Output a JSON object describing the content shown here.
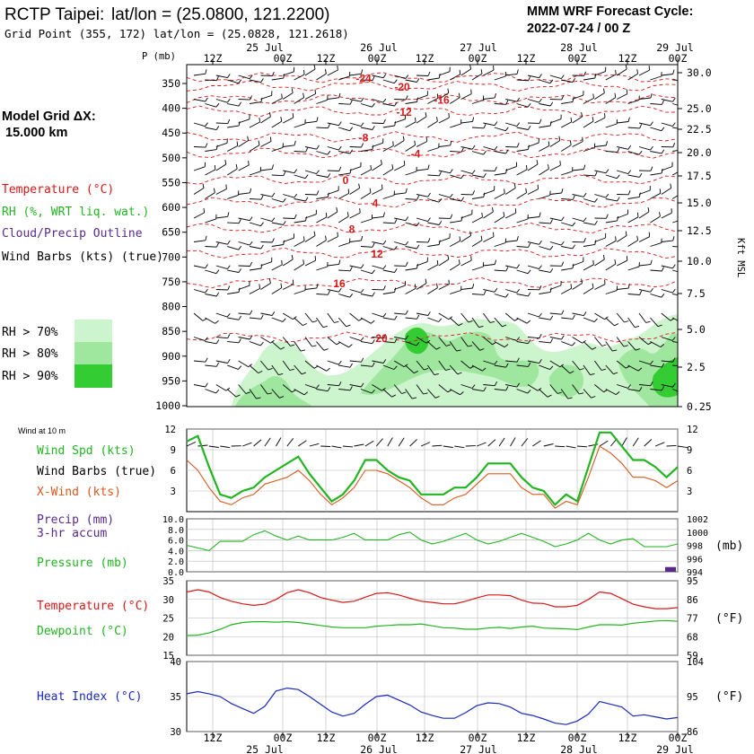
{
  "colors": {
    "temperature": "#d81818",
    "rh_green": "#22b522",
    "cloud_purple": "#5a2a8a",
    "xwind": "#d8581e",
    "heat_index": "#1a2ab8",
    "rh70": "#cdf5cd",
    "rh80": "#9fe69f",
    "rh90": "#33cc33"
  },
  "header": {
    "station": "RCTP Taipei:",
    "latlon_label": "lat/lon = (25.0800, 121.2200)",
    "grid_point": "Grid Point (355, 172) lat/lon = (25.0828, 121.2618)",
    "model_line1": "MMM WRF Forecast Cycle:",
    "model_line2": "2022-07-24 / 00  Z",
    "grid_dx_line1": "Model Grid ΔX:",
    "grid_dx_line2": "15.000 km"
  },
  "time_axis": {
    "ticks": [
      "12Z",
      "00Z",
      "12Z",
      "00Z",
      "12Z",
      "00Z",
      "12Z",
      "00Z",
      "12Z",
      "00Z"
    ],
    "dates": [
      "25 Jul",
      "26 Jul",
      "27 Jul",
      "28 Jul",
      "29 Jul"
    ]
  },
  "legend": {
    "temperature": "Temperature (°C)",
    "rh": "RH (%, WRT liq. wat.)",
    "cloud": "Cloud/Precip Outline",
    "barbs": "Wind Barbs (kts) (true)",
    "rh70": "RH > 70%",
    "rh80": "RH > 80%",
    "rh90": "RH > 90%"
  },
  "labels": {
    "wind10m": "Wind at 10 m",
    "wind_spd": "Wind Spd (kts)",
    "wind_barbs": "Wind Barbs (true)",
    "xwind": "X-Wind (kts)",
    "precip1": "Precip (mm)",
    "precip2": "3-hr accum",
    "pressure": "Pressure (mb)",
    "mb_unit": "(mb)",
    "temp": "Temperature (°C)",
    "dewpoint": "Dewpoint (°C)",
    "degF": "(°F)",
    "heat_index": "Heat Index (°C)",
    "p_axis": "P (mb)",
    "kft": "Kft MSL"
  },
  "chart_data": [
    {
      "type": "time-height cross section",
      "p_levels": [
        350,
        400,
        450,
        500,
        550,
        600,
        650,
        700,
        750,
        800,
        850,
        900,
        950,
        1000
      ],
      "kft_labels": [
        "30.0",
        "25.0",
        "22.5",
        "20.0",
        "17.5",
        "15.0",
        "12.5",
        "10.0",
        "7.5",
        "5.0",
        "2.5",
        "0.25"
      ],
      "temperature_contours": [
        {
          "label": "-24",
          "p": 338
        },
        {
          "label": "-20",
          "p": 355
        },
        {
          "label": "-16",
          "p": 382
        },
        {
          "label": "-12",
          "p": 406
        },
        {
          "label": "-8",
          "p": 458
        },
        {
          "label": "-4",
          "p": 490
        },
        {
          "label": "0",
          "p": 544
        },
        {
          "label": "4",
          "p": 590
        },
        {
          "label": "8",
          "p": 642
        },
        {
          "label": "12",
          "p": 692
        },
        {
          "label": "16",
          "p": 752
        },
        {
          "label": "20",
          "p": 862
        }
      ]
    },
    {
      "type": "line",
      "title": "Wind at 10 m",
      "y_ticks": [
        12,
        9,
        6,
        3
      ],
      "ylim": [
        0,
        12
      ],
      "series": [
        {
          "name": "Wind Spd (kts)",
          "values": [
            10.2,
            11.0,
            6.5,
            2.5,
            2.0,
            3.0,
            3.5,
            5.0,
            6.0,
            7.0,
            8.0,
            5.5,
            3.5,
            1.5,
            2.5,
            4.5,
            7.5,
            7.5,
            6.0,
            5.0,
            4.5,
            2.5,
            2.5,
            2.5,
            3.5,
            3.5,
            5.0,
            7.0,
            7.0,
            7.0,
            5.0,
            3.5,
            3.0,
            1.0,
            2.5,
            1.5,
            6.5,
            11.5,
            11.5,
            9.5,
            7.5,
            7.5,
            6.5,
            5.0,
            6.5
          ]
        },
        {
          "name": "X-Wind (kts)",
          "values": [
            7.5,
            6.0,
            3.5,
            1.5,
            1.0,
            2.0,
            2.5,
            4.0,
            4.5,
            5.0,
            6.0,
            4.5,
            2.5,
            1.0,
            2.0,
            3.5,
            6.0,
            6.0,
            5.5,
            4.5,
            3.5,
            2.0,
            1.0,
            1.0,
            2.0,
            2.5,
            4.0,
            5.5,
            5.5,
            5.5,
            3.5,
            2.5,
            2.5,
            0.5,
            1.5,
            1.0,
            5.0,
            9.5,
            8.5,
            7.0,
            5.0,
            5.0,
            4.5,
            3.5,
            4.5
          ]
        }
      ]
    },
    {
      "type": "line+bar",
      "title": "Precip (mm) / Pressure (mb)",
      "precip_ticks": [
        "10.0",
        "8.0",
        "6.0",
        "4.0",
        "2.0",
        "0.0"
      ],
      "pressure_ticks": [
        "1002",
        "1000",
        "998",
        "996",
        "994"
      ],
      "precip_ylim": [
        0,
        10
      ],
      "pressure_ylim": [
        994,
        1002
      ],
      "series": [
        {
          "name": "Pressure (mb)",
          "values": [
            998.0,
            997.6,
            997.2,
            998.6,
            998.6,
            998.6,
            999.6,
            1000.2,
            999.4,
            998.8,
            999.4,
            998.8,
            998.8,
            998.8,
            999.2,
            999.8,
            998.8,
            998.8,
            998.8,
            999.6,
            1000.0,
            998.8,
            998.2,
            998.6,
            999.2,
            999.8,
            998.8,
            998.2,
            998.6,
            999.2,
            999.8,
            999.2,
            998.6,
            997.8,
            998.2,
            998.8,
            999.8,
            998.8,
            998.2,
            998.8,
            999.0,
            997.8,
            997.8,
            997.8,
            998.2
          ]
        },
        {
          "name": "Precip (mm)",
          "values": [
            0,
            0,
            0,
            0,
            0,
            0,
            0,
            0,
            0,
            0,
            0,
            0,
            0,
            0,
            0,
            0,
            0,
            0,
            0,
            0,
            0,
            0,
            0,
            0,
            0,
            0,
            0,
            0,
            0,
            0,
            0,
            0,
            0,
            0,
            0,
            0,
            0,
            0,
            0,
            0,
            0,
            0,
            0,
            0,
            0.9
          ]
        }
      ]
    },
    {
      "type": "line",
      "title": "Temperature / Dewpoint",
      "y_ticks_c": [
        35,
        30,
        25,
        20,
        15
      ],
      "y_ticks_f": [
        95,
        86,
        77,
        68,
        59
      ],
      "ylim": [
        15,
        35
      ],
      "series": [
        {
          "name": "Temperature (°C)",
          "values": [
            32.0,
            32.6,
            32.0,
            30.5,
            29.5,
            28.8,
            28.4,
            28.7,
            30.0,
            31.8,
            32.6,
            31.8,
            30.5,
            29.8,
            29.2,
            29.5,
            30.6,
            31.6,
            31.8,
            31.2,
            30.3,
            29.5,
            29.2,
            28.8,
            28.8,
            29.5,
            30.4,
            31.2,
            31.2,
            31.0,
            29.8,
            29.0,
            28.9,
            28.0,
            28.0,
            28.4,
            30.0,
            32.0,
            31.6,
            30.2,
            28.7,
            28.0,
            27.5,
            27.5,
            27.8
          ]
        },
        {
          "name": "Dewpoint (°C)",
          "values": [
            20.3,
            20.4,
            21.0,
            22.0,
            23.2,
            23.8,
            24.0,
            24.0,
            23.9,
            24.0,
            23.8,
            23.4,
            23.0,
            22.6,
            22.4,
            22.4,
            22.4,
            22.8,
            23.0,
            23.2,
            23.2,
            23.4,
            22.9,
            22.4,
            22.3,
            22.0,
            22.0,
            22.3,
            22.5,
            22.2,
            22.6,
            22.8,
            22.3,
            22.2,
            22.1,
            21.9,
            22.6,
            23.2,
            23.2,
            23.1,
            23.6,
            23.9,
            24.2,
            24.3,
            24.1
          ]
        }
      ]
    },
    {
      "type": "line",
      "title": "Heat Index",
      "y_ticks_c": [
        40,
        35,
        30
      ],
      "y_ticks_f": [
        104,
        95,
        86
      ],
      "ylim": [
        30,
        40
      ],
      "series": [
        {
          "name": "Heat Index (°C)",
          "values": [
            35.4,
            35.7,
            35.4,
            35.0,
            34.0,
            33.3,
            32.6,
            33.6,
            35.8,
            36.2,
            36.0,
            35.0,
            33.9,
            32.8,
            32.2,
            32.6,
            33.9,
            35.0,
            35.2,
            34.5,
            33.8,
            32.8,
            32.3,
            31.9,
            31.9,
            32.7,
            33.7,
            34.1,
            34.0,
            33.5,
            32.6,
            32.3,
            31.8,
            31.2,
            31.0,
            31.5,
            32.5,
            34.3,
            33.9,
            33.5,
            32.2,
            32.4,
            32.1,
            31.8,
            32.0
          ]
        }
      ]
    }
  ]
}
